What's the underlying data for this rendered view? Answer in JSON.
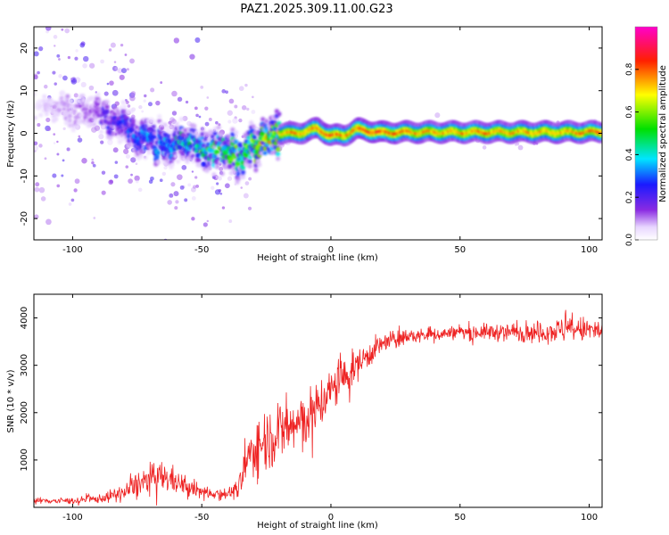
{
  "figure_title": "PAZ1.2025.309.11.00.G23",
  "colors": {
    "snr_line": "#ee2222",
    "axis": "#000000",
    "background": "#ffffff"
  },
  "chart_data": [
    {
      "type": "heatmap",
      "xlabel": "Height of straight line (km)",
      "ylabel": "Frequency (Hz)",
      "xlim": [
        -115,
        105
      ],
      "ylim": [
        -25,
        25
      ],
      "xticks": [
        -100,
        -50,
        0,
        50,
        100
      ],
      "xtick_labels": [
        "-100",
        "-50",
        "0",
        "50",
        "100"
      ],
      "yticks": [
        -20,
        -10,
        0,
        10,
        20
      ],
      "ytick_labels": [
        "-20",
        "-10",
        "0",
        "10",
        "20"
      ],
      "colorbar": {
        "label": "Normalized spectral amplitude",
        "range": [
          0,
          1
        ],
        "ticks": [
          0.0,
          0.2,
          0.4,
          0.6,
          0.8
        ],
        "tick_labels": [
          "0.0",
          "0.2",
          "0.4",
          "0.6",
          "0.8"
        ],
        "colormap": "rainbow (white-violet-blue-cyan-green-yellow-red-magenta)"
      },
      "ridge": {
        "x_km": [
          -115,
          -105,
          -95,
          -90,
          -85,
          -80,
          -75,
          -70,
          -65,
          -60,
          -55,
          -50,
          -45,
          -40,
          -35,
          -30,
          -25,
          -20,
          -15,
          -10,
          -5,
          0,
          5,
          10,
          20,
          30,
          40,
          50,
          60,
          70,
          80,
          90,
          100,
          105
        ],
        "freq_hz": [
          7,
          6,
          5,
          5,
          3,
          2,
          -1,
          -2,
          -3,
          -3,
          -2,
          -3,
          -4,
          -5,
          -5,
          -3,
          -1,
          0,
          0,
          0.3,
          1.2,
          -0.5,
          -0.5,
          1,
          0.2,
          0.3,
          0.3,
          0.3,
          0.3,
          0.3,
          0.3,
          0.3,
          0.3,
          0.4
        ],
        "amplitude": [
          0.05,
          0.08,
          0.12,
          0.15,
          0.2,
          0.25,
          0.3,
          0.3,
          0.35,
          0.35,
          0.4,
          0.45,
          0.45,
          0.5,
          0.5,
          0.55,
          0.6,
          0.7,
          0.75,
          0.75,
          0.8,
          0.8,
          0.75,
          0.8,
          0.8,
          0.75,
          0.75,
          0.75,
          0.75,
          0.75,
          0.75,
          0.75,
          0.75,
          0.8
        ]
      }
    },
    {
      "type": "line",
      "xlabel": "Height of straight line (km)",
      "ylabel": "SNR (10 * v/v)",
      "xlim": [
        -115,
        105
      ],
      "ylim": [
        0,
        4500
      ],
      "xticks": [
        -100,
        -50,
        0,
        50,
        100
      ],
      "xtick_labels": [
        "-100",
        "-50",
        "0",
        "50",
        "100"
      ],
      "yticks": [
        1000,
        2000,
        3000,
        4000
      ],
      "ytick_labels": [
        "1000",
        "2000",
        "3000",
        "4000"
      ],
      "envelope": {
        "x_km": [
          -115,
          -100,
          -90,
          -80,
          -75,
          -70,
          -65,
          -60,
          -55,
          -50,
          -45,
          -40,
          -36,
          -33,
          -30,
          -25,
          -20,
          -15,
          -10,
          -5,
          0,
          5,
          10,
          15,
          20,
          25,
          30,
          40,
          50,
          60,
          70,
          80,
          90,
          100,
          105
        ],
        "mean": [
          140,
          140,
          180,
          300,
          500,
          600,
          650,
          550,
          400,
          330,
          300,
          300,
          350,
          900,
          1250,
          1450,
          1600,
          1700,
          1850,
          2150,
          2450,
          2750,
          3000,
          3250,
          3450,
          3550,
          3600,
          3650,
          3700,
          3700,
          3700,
          3700,
          3750,
          3750,
          3700
        ],
        "noise": [
          60,
          60,
          80,
          160,
          250,
          300,
          300,
          250,
          170,
          130,
          120,
          120,
          150,
          450,
          550,
          600,
          600,
          600,
          550,
          500,
          450,
          400,
          300,
          260,
          200,
          170,
          140,
          130,
          130,
          160,
          180,
          200,
          250,
          250,
          250
        ]
      }
    }
  ]
}
